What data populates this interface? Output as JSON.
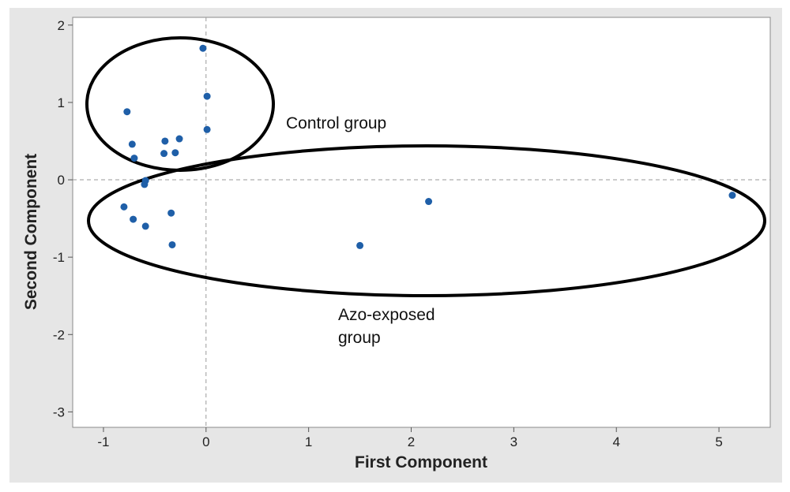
{
  "chart_data": {
    "type": "scatter",
    "title": "",
    "xlabel": "First Component",
    "ylabel": "Second Component",
    "xlim": [
      -1.3,
      5.5
    ],
    "ylim": [
      -3.2,
      2.1
    ],
    "xticks": [
      -1,
      0,
      1,
      2,
      3,
      4,
      5
    ],
    "yticks": [
      -3,
      -2,
      -1,
      0,
      1,
      2
    ],
    "xtick_labels": [
      "-1",
      "0",
      "1",
      "2",
      "3",
      "4",
      "5"
    ],
    "ytick_labels": [
      "-3",
      "-2",
      "-1",
      "0",
      "1",
      "2"
    ],
    "reference_lines": {
      "x": 0,
      "y": 0
    },
    "grid": false,
    "marker_color": "#1f5fa8",
    "points": [
      {
        "x": -0.03,
        "y": 1.7
      },
      {
        "x": 0.01,
        "y": 1.08
      },
      {
        "x": 0.01,
        "y": 0.65
      },
      {
        "x": -0.77,
        "y": 0.88
      },
      {
        "x": -0.72,
        "y": 0.46
      },
      {
        "x": -0.7,
        "y": 0.28
      },
      {
        "x": -0.4,
        "y": 0.5
      },
      {
        "x": -0.26,
        "y": 0.53
      },
      {
        "x": -0.41,
        "y": 0.34
      },
      {
        "x": -0.3,
        "y": 0.35
      },
      {
        "x": -0.59,
        "y": -0.01
      },
      {
        "x": -0.6,
        "y": -0.06
      },
      {
        "x": -0.8,
        "y": -0.35
      },
      {
        "x": -0.71,
        "y": -0.51
      },
      {
        "x": -0.34,
        "y": -0.43
      },
      {
        "x": -0.59,
        "y": -0.6
      },
      {
        "x": -0.33,
        "y": -0.84
      },
      {
        "x": 1.5,
        "y": -0.85
      },
      {
        "x": 2.17,
        "y": -0.28
      },
      {
        "x": 5.13,
        "y": -0.2
      }
    ],
    "annotations": [
      {
        "text": "Control group"
      },
      {
        "text": "Azo-exposed"
      },
      {
        "text": "group"
      }
    ]
  }
}
